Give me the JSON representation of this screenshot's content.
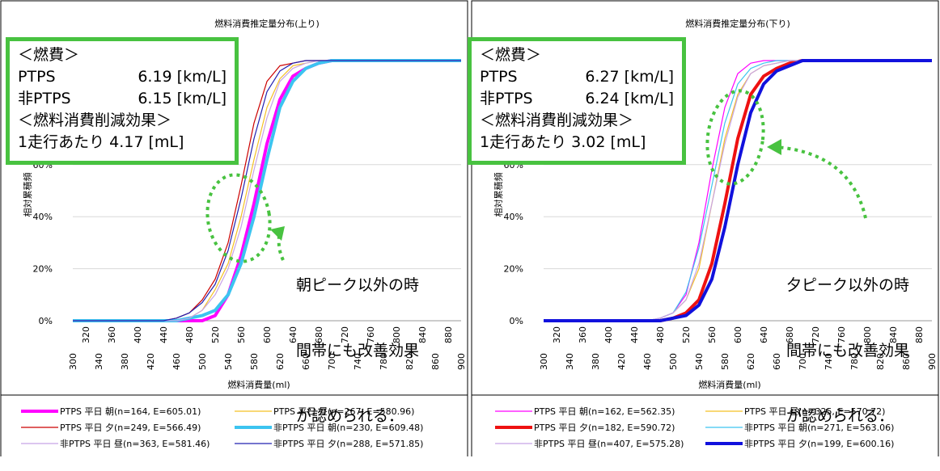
{
  "chart_data": [
    {
      "type": "line",
      "title": "燃料消費推定量分布(上り)",
      "xlabel": "燃料消費量(ml)",
      "ylabel": "相対累積頻",
      "ylim": [
        0,
        1
      ],
      "y_ticks": [
        "0%",
        "20%",
        "40%",
        "60%"
      ],
      "x_ticks_top": [
        "320",
        "360",
        "400",
        "440",
        "480",
        "520",
        "560",
        "600",
        "640",
        "680",
        "720",
        "760",
        "800",
        "840",
        "880"
      ],
      "x_ticks_bottom": [
        "300",
        "340",
        "380",
        "420",
        "460",
        "500",
        "540",
        "580",
        "620",
        "660",
        "700",
        "740",
        "780",
        "820",
        "860",
        "900"
      ],
      "x": [
        300,
        440,
        460,
        480,
        500,
        520,
        540,
        560,
        580,
        600,
        620,
        640,
        660,
        680,
        700,
        720,
        740,
        760,
        780,
        800,
        900
      ],
      "series": [
        {
          "name": "PTPS 平日 朝(n=164, E=605.01)",
          "color": "#ff00ff",
          "width": 4,
          "values": [
            0,
            0,
            0,
            0,
            0,
            0.02,
            0.1,
            0.25,
            0.45,
            0.68,
            0.85,
            0.94,
            0.97,
            0.99,
            1,
            1,
            1,
            1,
            1,
            1,
            1
          ]
        },
        {
          "name": "PTPS 平日 昼(n=267, E=580.96)",
          "color": "#f4c025",
          "width": 1.2,
          "values": [
            0,
            0,
            0,
            0.01,
            0.04,
            0.12,
            0.22,
            0.4,
            0.62,
            0.82,
            0.93,
            0.98,
            0.99,
            1,
            1,
            1,
            1,
            1,
            1,
            1,
            1
          ]
        },
        {
          "name": "PTPS 平日 夕(n=249, E=566.49)",
          "color": "#cc0000",
          "width": 1.2,
          "values": [
            0,
            0,
            0.01,
            0.03,
            0.08,
            0.16,
            0.3,
            0.52,
            0.76,
            0.92,
            0.98,
            0.99,
            1,
            1,
            1,
            1,
            1,
            1,
            1,
            1,
            1
          ]
        },
        {
          "name": "非PTPS 平日 朝(n=230, E=609.48)",
          "color": "#3cc4f0",
          "width": 4,
          "values": [
            0,
            0,
            0,
            0.01,
            0.02,
            0.04,
            0.1,
            0.22,
            0.4,
            0.62,
            0.82,
            0.92,
            0.97,
            0.99,
            1,
            1,
            1,
            1,
            1,
            1,
            1
          ]
        },
        {
          "name": "非PTPS 平日 昼(n=363, E=581.46)",
          "color": "#c8a4e6",
          "width": 1.2,
          "values": [
            0,
            0,
            0,
            0.01,
            0.04,
            0.1,
            0.2,
            0.36,
            0.58,
            0.78,
            0.92,
            0.97,
            0.99,
            1,
            1,
            1,
            1,
            1,
            1,
            1,
            1
          ]
        },
        {
          "name": "非PTPS 平日 夕(n=288, E=571.85)",
          "color": "#2020b0",
          "width": 1.2,
          "values": [
            0,
            0,
            0.01,
            0.03,
            0.07,
            0.14,
            0.27,
            0.47,
            0.7,
            0.88,
            0.96,
            0.99,
            1,
            1,
            1,
            1,
            1,
            1,
            1,
            1,
            1
          ]
        }
      ],
      "legend_placement": "bottom"
    },
    {
      "type": "line",
      "title": "燃料消費推定量分布(下り)",
      "xlabel": "燃料消費量(ml)",
      "ylabel": "相対累積頻",
      "ylim": [
        0,
        1
      ],
      "y_ticks": [
        "0%",
        "20%",
        "40%",
        "60%"
      ],
      "x_ticks_top": [
        "320",
        "360",
        "400",
        "440",
        "480",
        "520",
        "560",
        "600",
        "640",
        "680",
        "720",
        "760",
        "800",
        "840",
        "880"
      ],
      "x_ticks_bottom": [
        "300",
        "340",
        "380",
        "420",
        "460",
        "500",
        "540",
        "580",
        "620",
        "660",
        "700",
        "740",
        "780",
        "820",
        "860",
        "900"
      ],
      "x": [
        300,
        440,
        460,
        480,
        500,
        520,
        540,
        560,
        580,
        600,
        620,
        640,
        660,
        680,
        700,
        720,
        740,
        760,
        780,
        800,
        900
      ],
      "series": [
        {
          "name": "PTPS 平日 朝(n=162, E=562.35)",
          "color": "#ff00ff",
          "width": 1.2,
          "values": [
            0,
            0,
            0,
            0.01,
            0.03,
            0.1,
            0.3,
            0.58,
            0.82,
            0.95,
            0.99,
            1,
            1,
            1,
            1,
            1,
            1,
            1,
            1,
            1,
            1
          ]
        },
        {
          "name": "PTPS 平日 昼(n=325, E=570.72)",
          "color": "#f4c025",
          "width": 1.2,
          "values": [
            0,
            0,
            0,
            0.01,
            0.03,
            0.08,
            0.2,
            0.45,
            0.7,
            0.87,
            0.95,
            0.98,
            0.99,
            1,
            1,
            1,
            1,
            1,
            1,
            1,
            1
          ]
        },
        {
          "name": "PTPS 平日 夕(n=182, E=590.72)",
          "color": "#ee1111",
          "width": 4,
          "values": [
            0,
            0,
            0,
            0,
            0.01,
            0.03,
            0.08,
            0.22,
            0.45,
            0.7,
            0.87,
            0.94,
            0.97,
            0.99,
            1,
            1,
            1,
            1,
            1,
            1,
            1
          ]
        },
        {
          "name": "非PTPS 平日 朝(n=271, E=563.06)",
          "color": "#3cc4f0",
          "width": 1.2,
          "values": [
            0,
            0,
            0,
            0.01,
            0.03,
            0.11,
            0.28,
            0.52,
            0.76,
            0.91,
            0.97,
            0.99,
            1,
            1,
            1,
            1,
            1,
            1,
            1,
            1,
            1
          ]
        },
        {
          "name": "非PTPS 平日 昼(n=407, E=575.28)",
          "color": "#c8a4e6",
          "width": 1.2,
          "values": [
            0,
            0,
            0,
            0.01,
            0.03,
            0.08,
            0.22,
            0.45,
            0.68,
            0.86,
            0.95,
            0.98,
            0.99,
            1,
            1,
            1,
            1,
            1,
            1,
            1,
            1
          ]
        },
        {
          "name": "非PTPS 平日 夕(n=199, E=600.16)",
          "color": "#1111dd",
          "width": 4,
          "values": [
            0,
            0,
            0,
            0,
            0.01,
            0.02,
            0.06,
            0.16,
            0.36,
            0.6,
            0.8,
            0.91,
            0.96,
            0.98,
            1,
            1,
            1,
            1,
            1,
            1,
            1
          ]
        }
      ],
      "legend_placement": "bottom"
    }
  ],
  "panels": [
    {
      "box": {
        "heading": "＜燃費＞",
        "ptps_label": "PTPS",
        "ptps_value": "6.19 [km/L]",
        "nonptps_label": "非PTPS",
        "nonptps_value": "6.15 [km/L]",
        "effect_heading": "＜燃料消費削減効果＞",
        "effect_value": "1走行あたり 4.17 [mL]"
      },
      "note": [
        "朝ピーク以外の時",
        "間帯にも改善効果",
        "が認められる．"
      ]
    },
    {
      "box": {
        "heading": "＜燃費＞",
        "ptps_label": "PTPS",
        "ptps_value": "6.27 [km/L]",
        "nonptps_label": "非PTPS",
        "nonptps_value": "6.24 [km/L]",
        "effect_heading": "＜燃料消費削減効果＞",
        "effect_value": "1走行あたり 3.02 [mL]"
      },
      "note": [
        "夕ピーク以外の時",
        "間帯にも改善効果",
        "が認められる．"
      ]
    }
  ],
  "annotation_color": "#48c240"
}
